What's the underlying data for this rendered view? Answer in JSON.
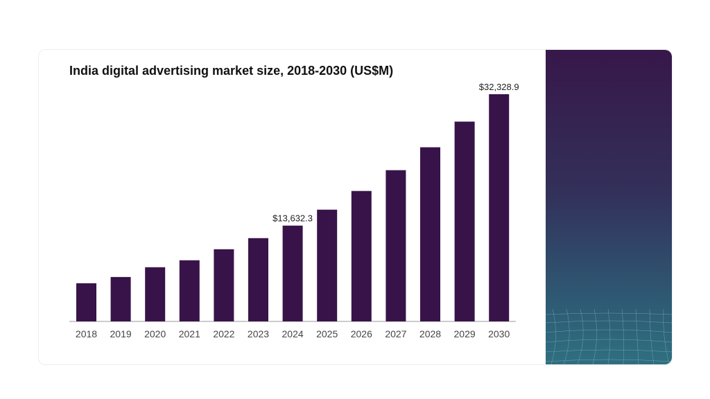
{
  "chart_data": {
    "type": "bar",
    "title": "India digital advertising market size, 2018-2030 (US$M)",
    "xlabel": "",
    "ylabel": "",
    "categories": [
      "2018",
      "2019",
      "2020",
      "2021",
      "2022",
      "2023",
      "2024",
      "2025",
      "2026",
      "2027",
      "2028",
      "2029",
      "2030"
    ],
    "values": [
      5430,
      6320,
      7710,
      8700,
      10270,
      11850,
      13632.3,
      15900,
      18560,
      21520,
      24780,
      28430,
      32328.9
    ],
    "data_labels": {
      "2024": "$13,632.3",
      "2030": "$32,328.9"
    },
    "ylim": [
      0,
      32328.9
    ],
    "grid": false,
    "bar_color": "#381349"
  }
}
